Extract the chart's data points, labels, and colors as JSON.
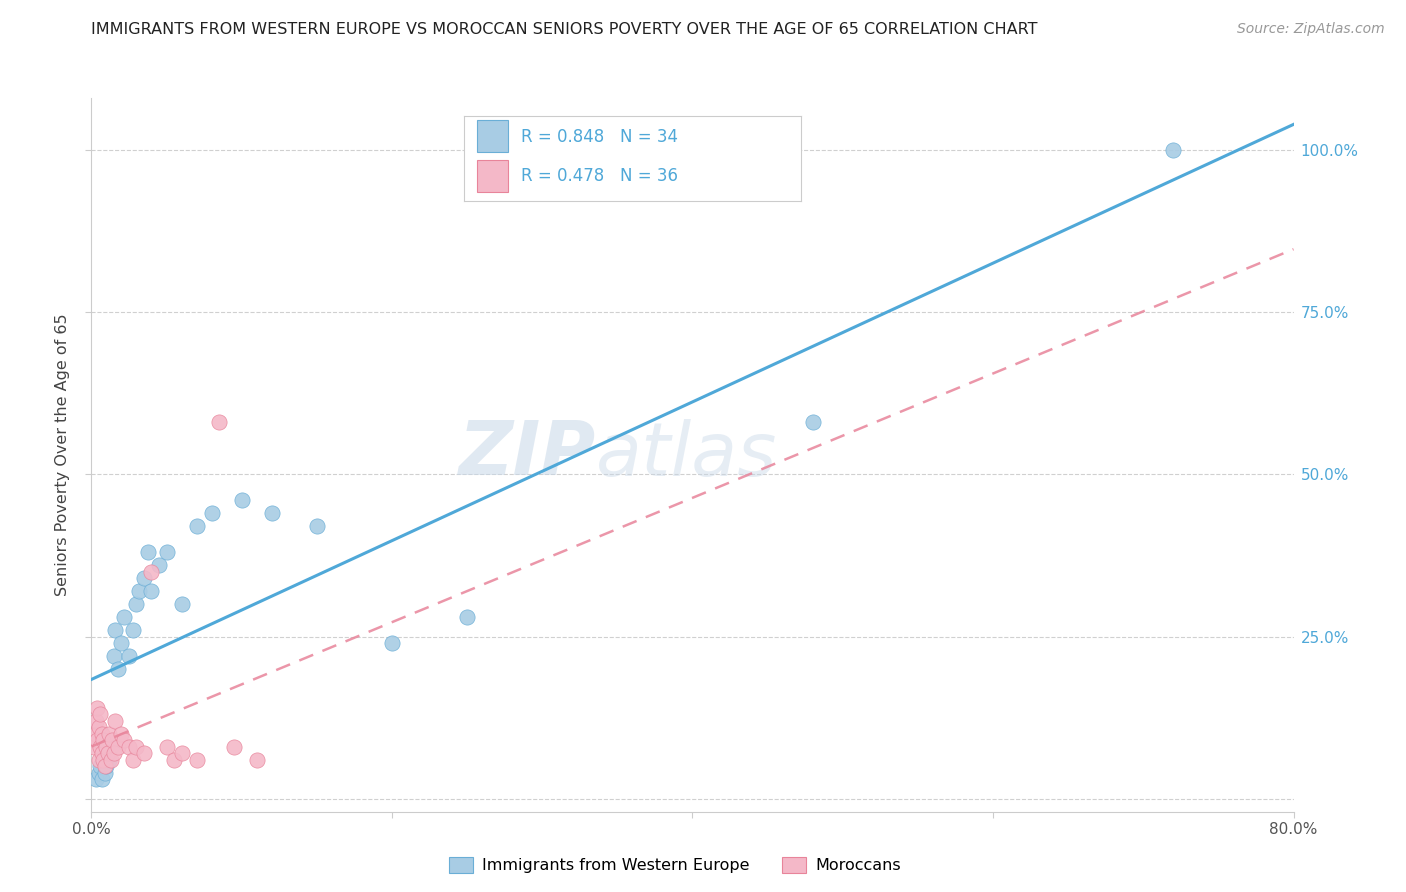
{
  "title": "IMMIGRANTS FROM WESTERN EUROPE VS MOROCCAN SENIORS POVERTY OVER THE AGE OF 65 CORRELATION CHART",
  "source": "Source: ZipAtlas.com",
  "ylabel": "Seniors Poverty Over the Age of 65",
  "xlim": [
    0.0,
    0.8
  ],
  "ylim": [
    -0.02,
    1.08
  ],
  "watermark_zip": "ZIP",
  "watermark_atlas": "atlas",
  "legend1_label": "R = 0.848   N = 34",
  "legend2_label": "R = 0.478   N = 36",
  "legend_bottom1": "Immigrants from Western Europe",
  "legend_bottom2": "Moroccans",
  "blue_color": "#a8cce4",
  "pink_color": "#f4b8c8",
  "blue_edge_color": "#6aaed6",
  "pink_edge_color": "#e8849a",
  "blue_line_color": "#4fa8d8",
  "pink_line_color": "#e8849a",
  "blue_scatter_x": [
    0.003,
    0.005,
    0.006,
    0.007,
    0.008,
    0.009,
    0.01,
    0.011,
    0.012,
    0.013,
    0.015,
    0.016,
    0.018,
    0.02,
    0.022,
    0.025,
    0.028,
    0.03,
    0.032,
    0.035,
    0.038,
    0.04,
    0.045,
    0.05,
    0.06,
    0.07,
    0.08,
    0.1,
    0.12,
    0.15,
    0.2,
    0.25,
    0.48,
    0.72
  ],
  "blue_scatter_y": [
    0.03,
    0.04,
    0.05,
    0.03,
    0.06,
    0.04,
    0.05,
    0.07,
    0.06,
    0.08,
    0.22,
    0.26,
    0.2,
    0.24,
    0.28,
    0.22,
    0.26,
    0.3,
    0.32,
    0.34,
    0.38,
    0.32,
    0.36,
    0.38,
    0.3,
    0.42,
    0.44,
    0.46,
    0.44,
    0.42,
    0.24,
    0.28,
    0.58,
    1.0
  ],
  "pink_scatter_x": [
    0.002,
    0.003,
    0.003,
    0.004,
    0.004,
    0.005,
    0.005,
    0.006,
    0.006,
    0.007,
    0.007,
    0.008,
    0.008,
    0.009,
    0.01,
    0.011,
    0.012,
    0.013,
    0.014,
    0.015,
    0.016,
    0.018,
    0.02,
    0.022,
    0.025,
    0.028,
    0.03,
    0.035,
    0.04,
    0.05,
    0.055,
    0.06,
    0.07,
    0.085,
    0.095,
    0.11
  ],
  "pink_scatter_y": [
    0.08,
    0.1,
    0.12,
    0.09,
    0.14,
    0.06,
    0.11,
    0.08,
    0.13,
    0.07,
    0.1,
    0.06,
    0.09,
    0.05,
    0.08,
    0.07,
    0.1,
    0.06,
    0.09,
    0.07,
    0.12,
    0.08,
    0.1,
    0.09,
    0.08,
    0.06,
    0.08,
    0.07,
    0.35,
    0.08,
    0.06,
    0.07,
    0.06,
    0.58,
    0.08,
    0.06
  ]
}
